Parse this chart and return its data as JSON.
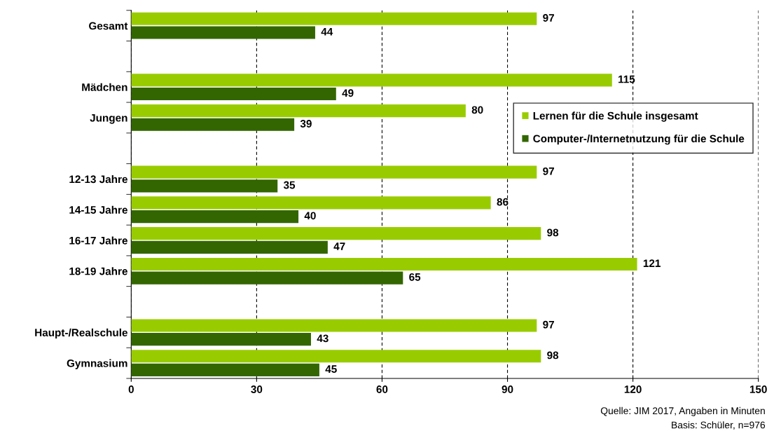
{
  "chart_data": {
    "type": "bar",
    "orientation": "horizontal",
    "categories": [
      "Gesamt",
      null,
      "Mädchen",
      "Jungen",
      null,
      "12-13 Jahre",
      "14-15 Jahre",
      "16-17 Jahre",
      "18-19 Jahre",
      null,
      "Haupt-/Realschule",
      "Gymnasium"
    ],
    "series": [
      {
        "name": "Lernen für die Schule insgesamt",
        "color": "#99cc00",
        "values": [
          97,
          null,
          115,
          80,
          null,
          97,
          86,
          98,
          121,
          null,
          97,
          98
        ]
      },
      {
        "name": "Computer-/Internetnutzung für die Schule",
        "color": "#336600",
        "values": [
          44,
          null,
          49,
          39,
          null,
          35,
          40,
          47,
          65,
          null,
          43,
          45
        ]
      }
    ],
    "xlim": [
      0,
      150
    ],
    "xticks": [
      0,
      30,
      60,
      90,
      120,
      150
    ],
    "grid": "x",
    "legend": "right",
    "data_labels": true,
    "annotations": [
      "Quelle: JIM 2017, Angaben in Minuten",
      "Basis: Schüler, n=976"
    ]
  }
}
